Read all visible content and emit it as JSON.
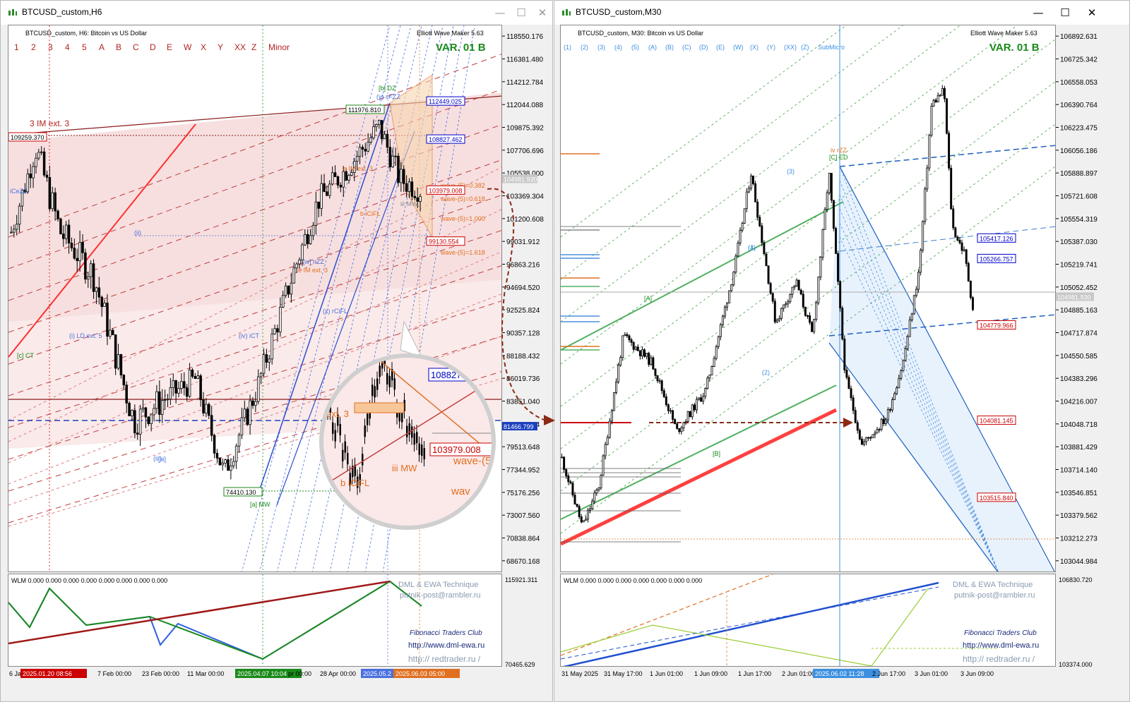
{
  "left_window": {
    "title": "BTCUSD_custom,H6",
    "header": "BTCUSD_custom, H6:  Bitcoin vs US Dollar",
    "indicator": "Elliott Wave Maker 5.63",
    "variant": "VAR. 01 B",
    "wave_levels": [
      "1",
      "2",
      "3",
      "4",
      "5",
      "A",
      "B",
      "C",
      "D",
      "E",
      "W",
      "X",
      "Y",
      "XX",
      "Z",
      "Minor"
    ],
    "price_axis": [
      "118550.176",
      "116381.480",
      "114212.784",
      "112044.088",
      "109875.392",
      "107706.696",
      "105538.000",
      "103369.304",
      "101200.608",
      "99031.912",
      "96863.216",
      "94694.520",
      "92525.824",
      "90357.128",
      "88188.432",
      "86019.736",
      "83851.040",
      "81682.344",
      "79513.648",
      "77344.952",
      "75176.256",
      "73007.560",
      "70838.864",
      "68670.168"
    ],
    "price_tags": [
      {
        "text": "112449.025",
        "color": "#0000cc",
        "price": 112449.025
      },
      {
        "text": "108827.462",
        "color": "#0000cc",
        "price": 108827.462
      },
      {
        "text": "103979.008",
        "color": "#cc0000",
        "price": 103979.008
      },
      {
        "text": "99130.554",
        "color": "#cc0000",
        "price": 99130.554
      },
      {
        "text": "81466.799",
        "color": "#ffffff",
        "bg": "#1c3fbf",
        "price": 81466.799
      },
      {
        "text": "104981.930",
        "color": "#ffffff",
        "bg": "#c8c8c8",
        "price": 104981.93
      }
    ],
    "left_tags": [
      {
        "text": "109259.370",
        "price": 109259.37
      },
      {
        "text": "111976.810",
        "price": 111976.81
      },
      {
        "text": "74410.130",
        "price": 74410.13
      }
    ],
    "wave_labels": [
      "3 IM ext. 3",
      "[iii]",
      "(iii)",
      "(i) LD ext. 5",
      "(ii)",
      "[b] DZ",
      "(y) cFZZ",
      "a IM ext. 3",
      "[a] MW",
      "(iv) iCT",
      "[w] nZZ",
      "e IM ext. 3",
      "(x) rCiFL",
      "b iCiFL",
      "iii MW",
      "iCeZZ",
      "[c] CT",
      "wave-(5)=0.382",
      "wave-(5)=0.618",
      "wave-(5)=1.000",
      "wave-(5)=1.618"
    ],
    "time_axis": [
      "6 Jan",
      "2025.01.20 08:56",
      "7 Feb 00:00",
      "23 Feb 00:00",
      "11 Mar 00:00",
      "2025.04.07 10:04",
      "pr 00:00",
      "28 Apr 00:00",
      "2025.05.2",
      "2025.06.03 05:00"
    ],
    "sub_window": {
      "label": "WLM 0.000 0.000 0.000 0.000 0.000 0.000 0.000 0.000",
      "top": "115921.311",
      "bottom": "70465.629"
    },
    "magnifier": {
      "tags": [
        "108827.4",
        "103979.008"
      ],
      "labels": [
        "ext. 3",
        "b iCiFL",
        "iii MW",
        "wave-(5",
        "wav"
      ]
    }
  },
  "right_window": {
    "title": "BTCUSD_custom,M30",
    "header": "BTCUSD_custom, M30:  Bitcoin vs US Dollar",
    "indicator": "Elliott Wave Maker 5.63",
    "variant": "VAR. 01 B",
    "wave_levels": [
      "(1)",
      "(2)",
      "(3)",
      "(4)",
      "(5)",
      "(A)",
      "(B)",
      "(C)",
      "(D)",
      "(E)",
      "(W)",
      "(X)",
      "(Y)",
      "(XX)",
      "(Z)",
      "SubMicro"
    ],
    "price_axis": [
      "106892.631",
      "106725.342",
      "106558.053",
      "106390.764",
      "106223.475",
      "106056.186",
      "105888.897",
      "105721.608",
      "105554.319",
      "105387.030",
      "105219.741",
      "105052.452",
      "104885.163",
      "104717.874",
      "104550.585",
      "104383.296",
      "104216.007",
      "104048.718",
      "103881.429",
      "103714.140",
      "103546.851",
      "103379.562",
      "103212.273",
      "103044.984"
    ],
    "price_tags": [
      {
        "text": "105417.126",
        "color": "#0000cc",
        "price": 105417.126
      },
      {
        "text": "105266.757",
        "color": "#0000cc",
        "price": 105266.757
      },
      {
        "text": "104779.966",
        "color": "#cc0000",
        "price": 104779.966
      },
      {
        "text": "104081.145",
        "color": "#cc0000",
        "price": 104081.145
      },
      {
        "text": "103515.840",
        "color": "#cc0000",
        "price": 103515.84
      },
      {
        "text": "104981.930",
        "color": "#ffffff",
        "bg": "#c8c8c8",
        "price": 104981.93
      }
    ],
    "wave_labels": [
      "iv rZZ",
      "[C] ED",
      "(3)",
      "(4)",
      "(2)",
      "[B]",
      "[A]",
      "(1)"
    ],
    "time_axis": [
      "31 May 2025",
      "31 May 17:00",
      "1 Jun 01:00",
      "1 Jun 09:00",
      "1 Jun 17:00",
      "2 Jun 01:00",
      "2025.06.02 11:28",
      "2 Jun 17:00",
      "3 Jun 01:00",
      "3 Jun 09:00"
    ],
    "sub_window": {
      "label": "WLM 0.000 0.000 0.000 0.000 0.000 0.000 0.000",
      "top": "106830.720",
      "bottom": "103374.000"
    }
  },
  "credits": {
    "line1": "DML & EWA Technique",
    "line2": "putnik-post@rambler.ru",
    "line3": "Fibonacci   Traders   Club",
    "line4": "http://www.dml-ewa.ru",
    "line5": "http://  redtrader.ru  /"
  },
  "colors": {
    "accent_green": "#1a8a1a",
    "red": "#cc0000",
    "blue": "#0000cc",
    "orange": "#e07020"
  }
}
